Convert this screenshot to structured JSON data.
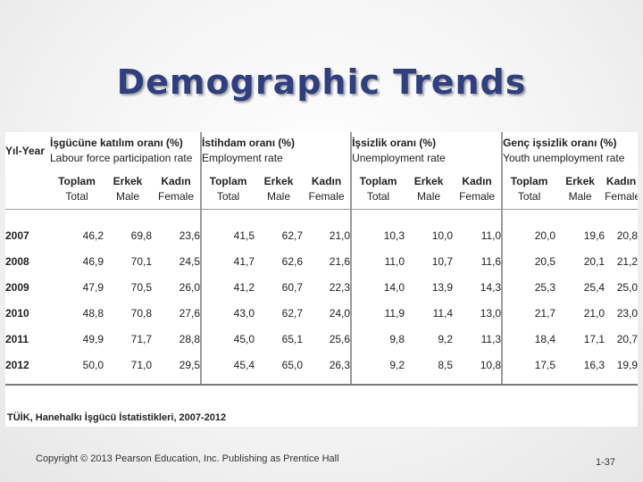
{
  "slide": {
    "title": "Demographic Trends",
    "copyright": "Copyright © 2013 Pearson Education, Inc. Publishing as Prentice Hall",
    "page_number": "1-37"
  },
  "table": {
    "year_header": "Yıl-Year",
    "groups": [
      {
        "tr": "İşgücüne katılım oranı (%)",
        "en": "Labour force participation rate"
      },
      {
        "tr": "İstihdam oranı (%)",
        "en": "Employment rate"
      },
      {
        "tr": "İşsizlik oranı (%)",
        "en": "Unemployment rate"
      },
      {
        "tr": "Genç işsizlik oranı (%)",
        "en": "Youth unemployment rate"
      }
    ],
    "subheaders": [
      {
        "tr": "Toplam",
        "en": "Total"
      },
      {
        "tr": "Erkek",
        "en": "Male"
      },
      {
        "tr": "Kadın",
        "en": "Female"
      }
    ],
    "rows": [
      {
        "year": "2007",
        "values": [
          "46,2",
          "69,8",
          "23,6",
          "41,5",
          "62,7",
          "21,0",
          "10,3",
          "10,0",
          "11,0",
          "20,0",
          "19,6",
          "20,8"
        ]
      },
      {
        "year": "2008",
        "values": [
          "46,9",
          "70,1",
          "24,5",
          "41,7",
          "62,6",
          "21,6",
          "11,0",
          "10,7",
          "11,6",
          "20,5",
          "20,1",
          "21,2"
        ]
      },
      {
        "year": "2009",
        "values": [
          "47,9",
          "70,5",
          "26,0",
          "41,2",
          "60,7",
          "22,3",
          "14,0",
          "13,9",
          "14,3",
          "25,3",
          "25,4",
          "25,0"
        ]
      },
      {
        "year": "2010",
        "values": [
          "48,8",
          "70,8",
          "27,6",
          "43,0",
          "62,7",
          "24,0",
          "11,9",
          "11,4",
          "13,0",
          "21,7",
          "21,0",
          "23,0"
        ]
      },
      {
        "year": "2011",
        "values": [
          "49,9",
          "71,7",
          "28,8",
          "45,0",
          "65,1",
          "25,6",
          "9,8",
          "9,2",
          "11,3",
          "18,4",
          "17,1",
          "20,7"
        ]
      },
      {
        "year": "2012",
        "values": [
          "50,0",
          "71,0",
          "29,5",
          "45,4",
          "65,0",
          "26,3",
          "9,2",
          "8,5",
          "10,8",
          "17,5",
          "16,3",
          "19,9"
        ]
      }
    ],
    "source": "TÜİK, Hanehalkı İşgücü İstatistikleri, 2007-2012"
  }
}
